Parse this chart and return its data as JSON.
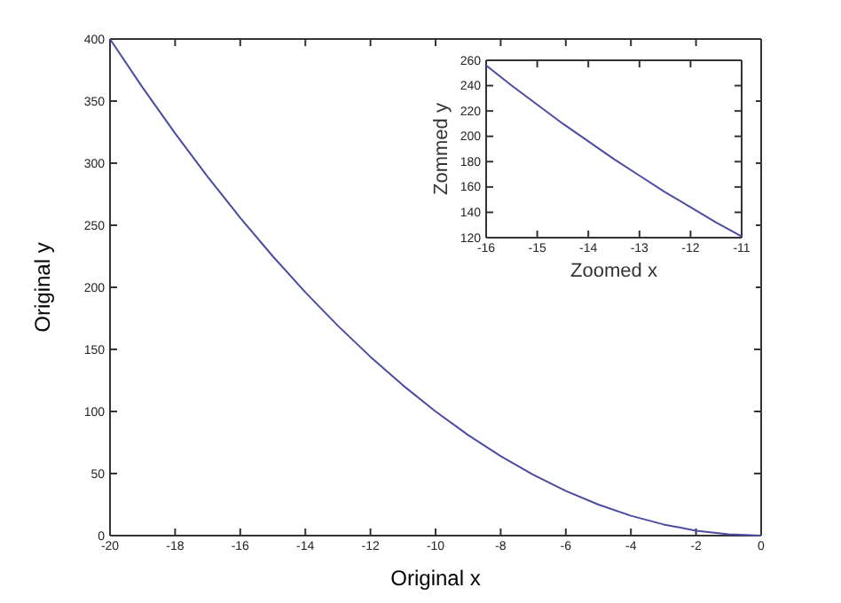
{
  "chart_data": [
    {
      "type": "line",
      "xlabel": "Original x",
      "ylabel": "Original y",
      "xlim": [
        -20,
        0
      ],
      "ylim": [
        0,
        400
      ],
      "xticks": [
        -20,
        -18,
        -16,
        -14,
        -12,
        -10,
        -8,
        -6,
        -4,
        -2,
        0
      ],
      "yticks": [
        0,
        50,
        100,
        150,
        200,
        250,
        300,
        350,
        400
      ],
      "marker": "none",
      "line_style": "solid",
      "x": [
        -20,
        -19,
        -18,
        -17,
        -16,
        -15,
        -14,
        -13,
        -12,
        -11,
        -10,
        -9,
        -8,
        -7,
        -6,
        -5,
        -4,
        -3,
        -2,
        -1,
        0
      ],
      "series": [
        {
          "color": "#4b4ba3",
          "values": [
            400,
            361,
            324,
            289,
            256,
            225,
            196,
            169,
            144,
            121,
            100,
            81,
            64,
            49,
            36,
            25,
            16,
            9,
            4,
            1,
            0
          ]
        }
      ]
    },
    {
      "type": "line",
      "xlabel": "Zoomed x",
      "ylabel": "Zommed y",
      "xlim": [
        -16,
        -11
      ],
      "ylim": [
        120,
        260
      ],
      "xticks": [
        -16,
        -15,
        -14,
        -13,
        -12,
        -11
      ],
      "yticks": [
        120,
        140,
        160,
        180,
        200,
        220,
        240,
        260
      ],
      "marker": "none",
      "line_style": "solid",
      "x": [
        -16,
        -15.5,
        -15,
        -14.5,
        -14,
        -13.5,
        -13,
        -12.5,
        -12,
        -11.5,
        -11
      ],
      "series": [
        {
          "color": "#4b4ba3",
          "values": [
            256,
            240,
            225,
            210,
            196,
            182,
            169,
            156,
            144,
            132,
            121
          ]
        }
      ]
    }
  ]
}
